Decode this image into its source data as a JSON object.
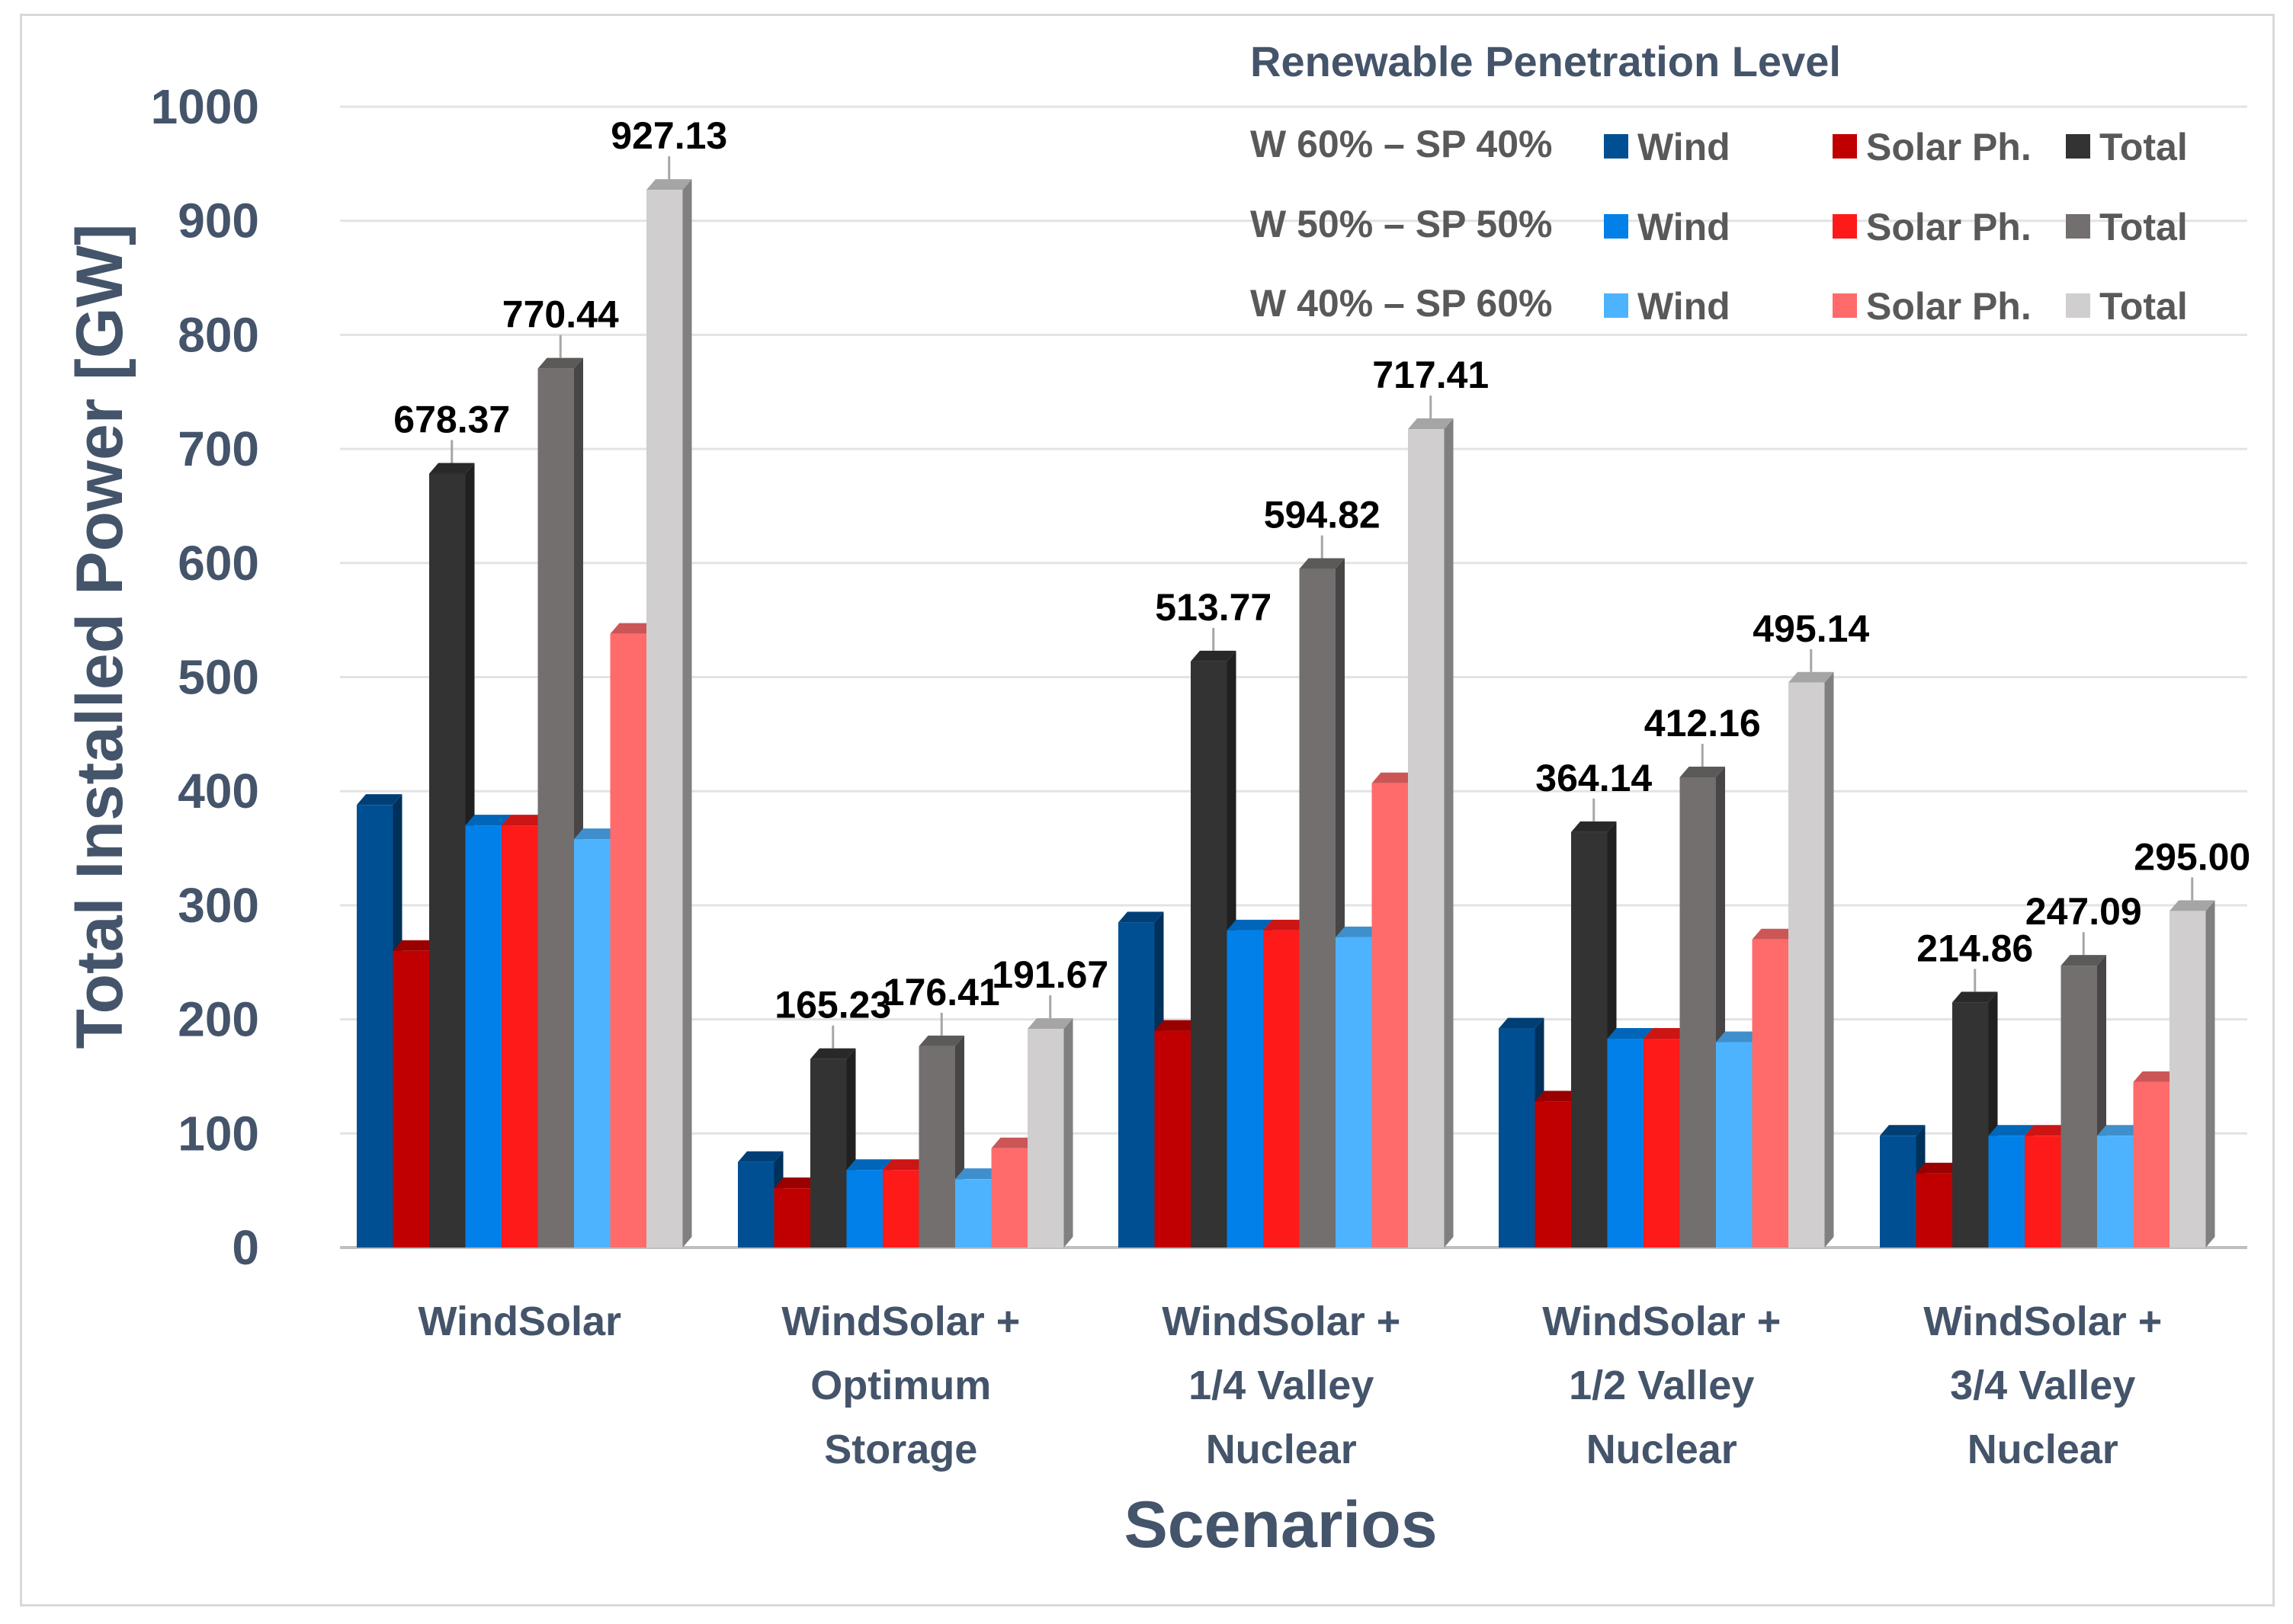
{
  "chart_data": {
    "type": "bar",
    "title": "",
    "xlabel": "Scenarios",
    "ylabel": "Total Installed Power [GW]",
    "ylim": [
      0,
      1000
    ],
    "yticks": [
      "0",
      "100",
      "200",
      "300",
      "400",
      "500",
      "600",
      "700",
      "800",
      "900",
      "1000"
    ],
    "categories": [
      [
        "WindSolar"
      ],
      [
        "WindSolar +",
        "Optimum",
        "Storage"
      ],
      [
        "WindSolar +",
        "1/4 Valley",
        "Nuclear"
      ],
      [
        "WindSolar +",
        "1/2 Valley",
        "Nuclear"
      ],
      [
        "WindSolar +",
        "3/4 Valley",
        "Nuclear"
      ]
    ],
    "legend": {
      "title": "Renewable Penetration Level",
      "placement": "top-right",
      "groups": [
        "W 60% – SP 40%",
        "W 50% – SP 50%",
        "W 40% – SP 60%"
      ]
    },
    "series": [
      {
        "name": "Wind",
        "group": 0,
        "color": "#004f93",
        "values": [
          388,
          75,
          285,
          192,
          98
        ]
      },
      {
        "name": "Solar Ph.",
        "group": 0,
        "color": "#c00000",
        "values": [
          260,
          52,
          190,
          128,
          65
        ]
      },
      {
        "name": "Total",
        "group": 0,
        "color": "#333333",
        "values": [
          678.37,
          165.23,
          513.77,
          364.14,
          214.86
        ],
        "labels": [
          "678.37",
          "165.23",
          "513.77",
          "364.14",
          "214.86"
        ]
      },
      {
        "name": "Wind",
        "group": 1,
        "color": "#0080e8",
        "values": [
          370,
          68,
          278,
          183,
          98
        ]
      },
      {
        "name": "Solar Ph.",
        "group": 1,
        "color": "#ff1a1a",
        "values": [
          370,
          68,
          278,
          183,
          98
        ]
      },
      {
        "name": "Total",
        "group": 1,
        "color": "#736f6f",
        "values": [
          770.44,
          176.41,
          594.82,
          412.16,
          247.09
        ],
        "labels": [
          "770.44",
          "176.41",
          "594.82",
          "412.16",
          "247.09"
        ]
      },
      {
        "name": "Wind",
        "group": 2,
        "color": "#4db3ff",
        "values": [
          358,
          60,
          272,
          180,
          98
        ]
      },
      {
        "name": "Solar Ph.",
        "group": 2,
        "color": "#ff6b6b",
        "values": [
          538,
          87,
          407,
          270,
          145
        ]
      },
      {
        "name": "Total",
        "group": 2,
        "color": "#d0cece",
        "values": [
          927.13,
          191.67,
          717.41,
          495.14,
          295.0
        ],
        "labels": [
          "927.13",
          "191.67",
          "717.41",
          "495.14",
          "295.00"
        ]
      }
    ]
  }
}
